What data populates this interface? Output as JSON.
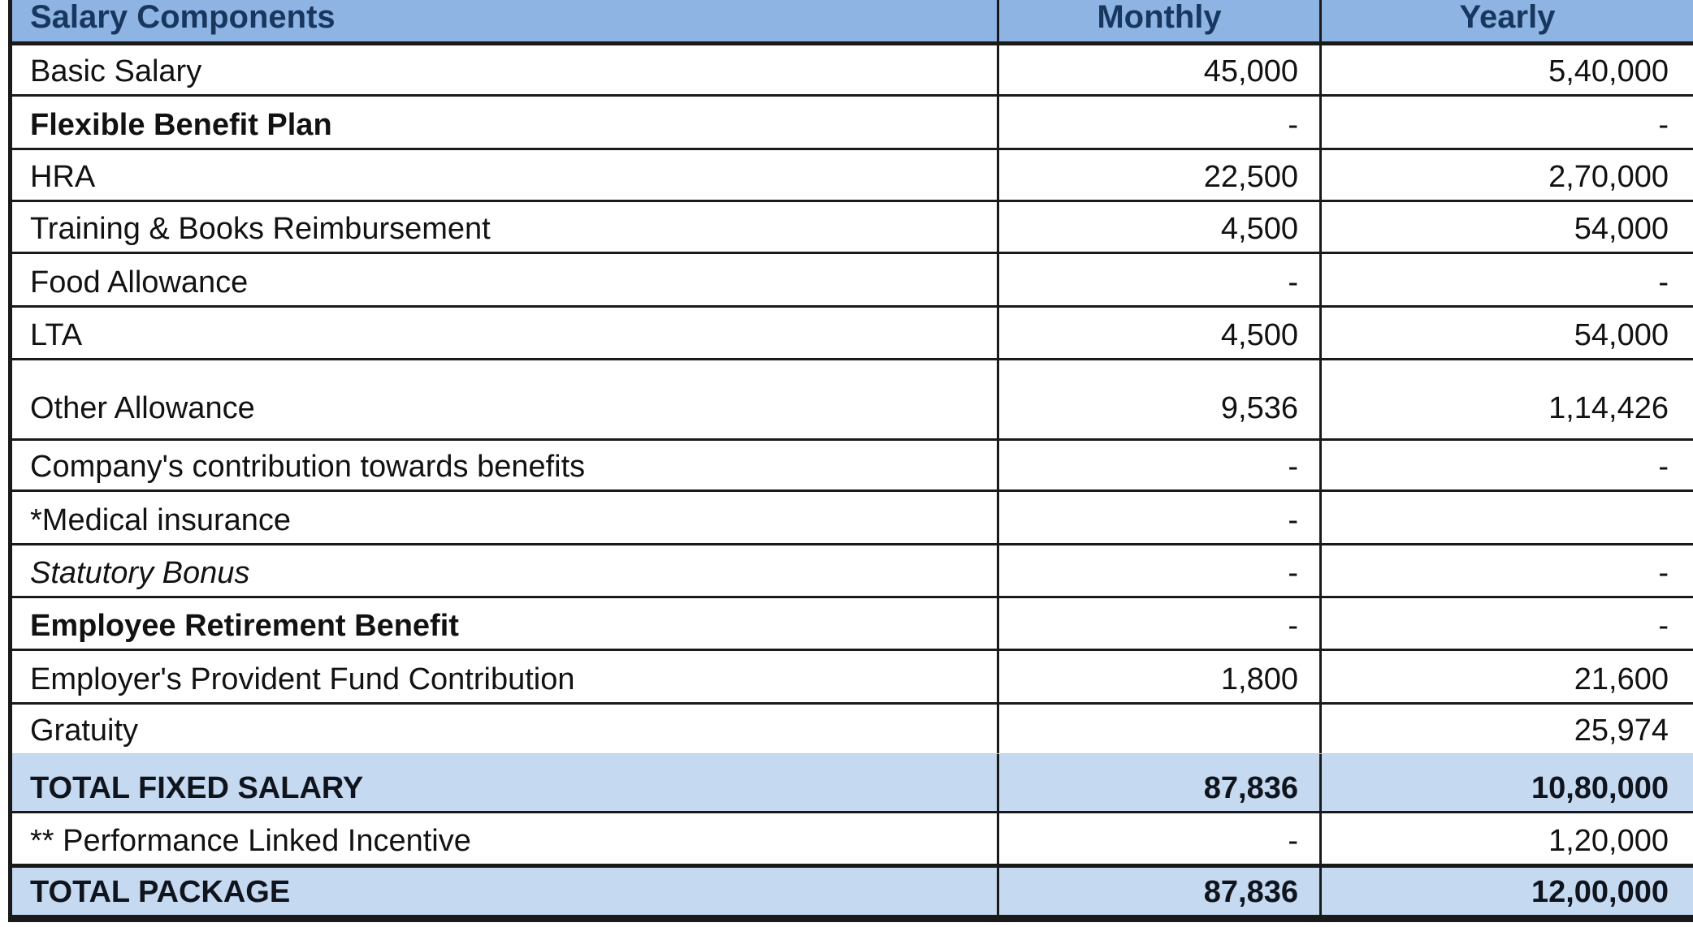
{
  "table": {
    "columns": [
      {
        "label": "Salary Components"
      },
      {
        "label": "Monthly"
      },
      {
        "label": "Yearly"
      }
    ],
    "rows": [
      {
        "label": "Basic Salary",
        "monthly": "45,000",
        "yearly": "5,40,000",
        "style": "normal"
      },
      {
        "label": "Flexible Benefit Plan",
        "monthly": "-",
        "yearly": "-",
        "style": "bold"
      },
      {
        "label": "HRA",
        "monthly": "22,500",
        "yearly": "2,70,000",
        "style": "normal"
      },
      {
        "label": "Training & Books Reimbursement",
        "monthly": "4,500",
        "yearly": "54,000",
        "style": "normal"
      },
      {
        "label": "Food Allowance",
        "monthly": "-",
        "yearly": "-",
        "style": "normal"
      },
      {
        "label": "LTA",
        "monthly": "4,500",
        "yearly": "54,000",
        "style": "normal"
      },
      {
        "label": "Other Allowance",
        "monthly": "9,536",
        "yearly": "1,14,426",
        "style": "normal"
      },
      {
        "label": "Company's contribution towards benefits",
        "monthly": "-",
        "yearly": "-",
        "style": "normal"
      },
      {
        "label": "*Medical insurance",
        "monthly": "-",
        "yearly": "",
        "style": "normal"
      },
      {
        "label": "Statutory Bonus",
        "monthly": "-",
        "yearly": "-",
        "style": "italic"
      },
      {
        "label": "Employee Retirement Benefit",
        "monthly": "-",
        "yearly": "-",
        "style": "bold"
      },
      {
        "label": "Employer's Provident Fund Contribution",
        "monthly": "1,800",
        "yearly": "21,600",
        "style": "normal"
      },
      {
        "label": "Gratuity",
        "monthly": "",
        "yearly": "25,974",
        "style": "normal"
      },
      {
        "label": "TOTAL FIXED SALARY",
        "monthly": "87,836",
        "yearly": "10,80,000",
        "style": "total"
      },
      {
        "label": "** Performance Linked Incentive",
        "monthly": "-",
        "yearly": "1,20,000",
        "style": "normal"
      },
      {
        "label": "TOTAL PACKAGE",
        "monthly": "87,836",
        "yearly": "12,00,000",
        "style": "total"
      }
    ],
    "colors": {
      "header_bg": "#8EB4E3",
      "header_text": "#17375E",
      "total_bg": "#C5D9F1",
      "border": "#1A1A1A"
    }
  }
}
